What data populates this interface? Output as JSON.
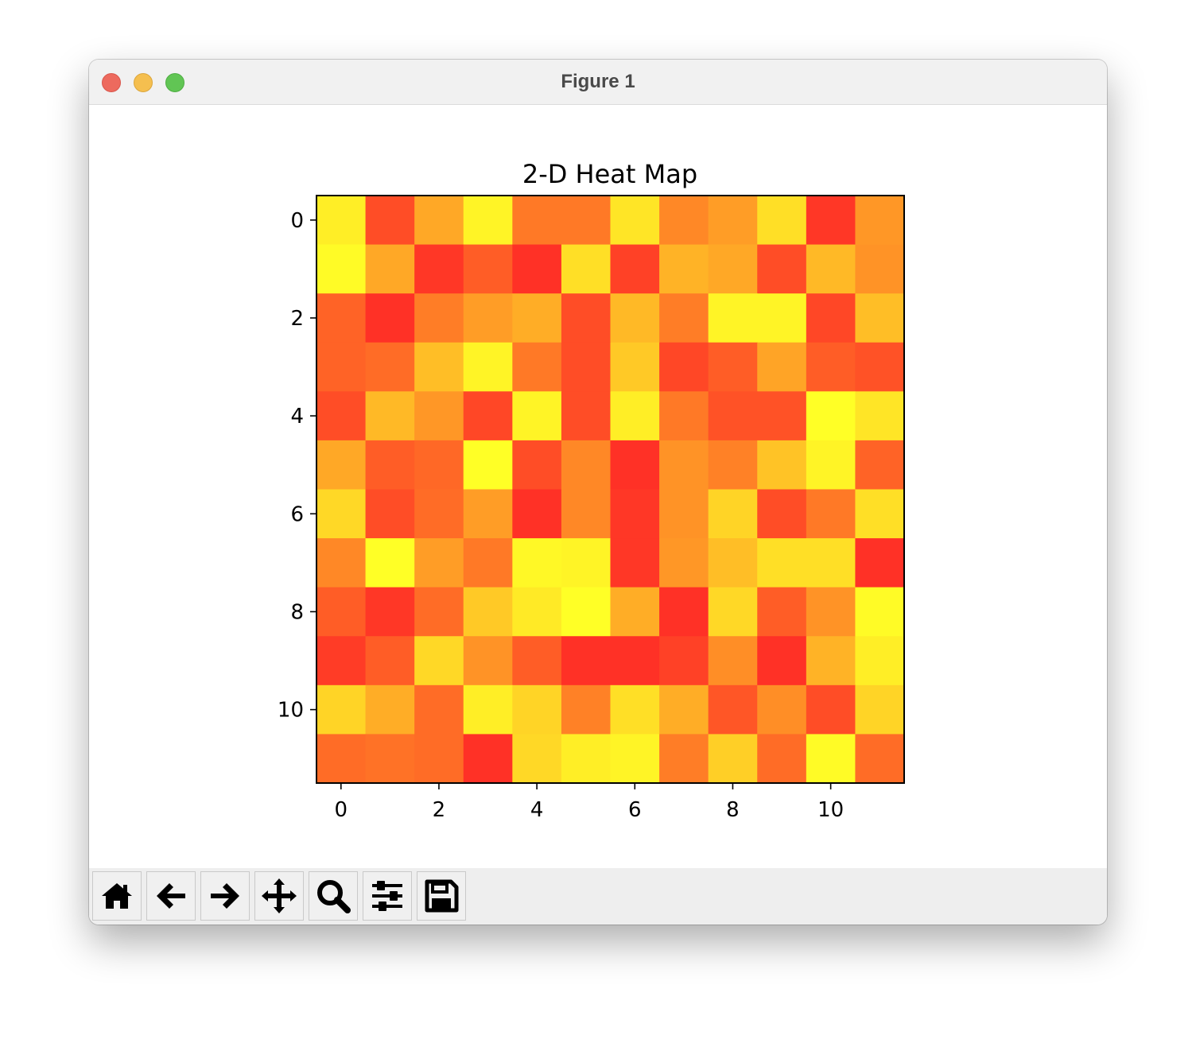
{
  "window": {
    "title": "Figure 1"
  },
  "toolbar": {
    "buttons": [
      {
        "name": "home-button",
        "icon": "home-icon"
      },
      {
        "name": "back-button",
        "icon": "arrow-left-icon"
      },
      {
        "name": "forward-button",
        "icon": "arrow-right-icon"
      },
      {
        "name": "pan-button",
        "icon": "move-icon"
      },
      {
        "name": "zoom-button",
        "icon": "magnifier-icon"
      },
      {
        "name": "configure-subplots-button",
        "icon": "sliders-icon"
      },
      {
        "name": "save-button",
        "icon": "floppy-disk-icon"
      }
    ]
  },
  "chart_data": {
    "type": "heatmap",
    "title": "2-D Heat Map",
    "xlabel": "",
    "ylabel": "",
    "colormap": "autumn_r",
    "vmin": 0,
    "vmax": 1,
    "x_ticks": [
      0,
      2,
      4,
      6,
      8,
      10
    ],
    "y_ticks": [
      0,
      2,
      4,
      6,
      8,
      10
    ],
    "xlim": [
      -0.5,
      11.5
    ],
    "ylim": [
      11.5,
      -0.5
    ],
    "grid": false,
    "values": [
      [
        0.92,
        0.18,
        0.6,
        0.95,
        0.38,
        0.38,
        0.88,
        0.45,
        0.55,
        0.85,
        0.08,
        0.52
      ],
      [
        0.98,
        0.6,
        0.08,
        0.25,
        0.05,
        0.85,
        0.12,
        0.65,
        0.6,
        0.18,
        0.68,
        0.5
      ],
      [
        0.28,
        0.05,
        0.4,
        0.55,
        0.62,
        0.18,
        0.68,
        0.4,
        0.95,
        0.95,
        0.15,
        0.7
      ],
      [
        0.28,
        0.32,
        0.7,
        0.95,
        0.38,
        0.18,
        0.75,
        0.15,
        0.25,
        0.58,
        0.25,
        0.2
      ],
      [
        0.18,
        0.68,
        0.52,
        0.15,
        0.95,
        0.18,
        0.92,
        0.38,
        0.2,
        0.2,
        1.0,
        0.88
      ],
      [
        0.6,
        0.25,
        0.3,
        1.0,
        0.18,
        0.45,
        0.05,
        0.5,
        0.42,
        0.72,
        0.95,
        0.28
      ],
      [
        0.82,
        0.18,
        0.32,
        0.55,
        0.05,
        0.45,
        0.08,
        0.5,
        0.8,
        0.18,
        0.38,
        0.85
      ],
      [
        0.45,
        1.0,
        0.55,
        0.38,
        0.97,
        0.95,
        0.08,
        0.52,
        0.7,
        0.85,
        0.85,
        0.05
      ],
      [
        0.25,
        0.08,
        0.32,
        0.75,
        0.9,
        1.0,
        0.62,
        0.05,
        0.82,
        0.25,
        0.5,
        0.98
      ],
      [
        0.1,
        0.25,
        0.82,
        0.5,
        0.25,
        0.05,
        0.05,
        0.12,
        0.48,
        0.05,
        0.65,
        0.92
      ],
      [
        0.8,
        0.62,
        0.32,
        0.92,
        0.8,
        0.42,
        0.85,
        0.62,
        0.22,
        0.48,
        0.18,
        0.8
      ],
      [
        0.32,
        0.35,
        0.32,
        0.05,
        0.82,
        0.92,
        0.95,
        0.4,
        0.78,
        0.32,
        0.98,
        0.32
      ]
    ]
  }
}
